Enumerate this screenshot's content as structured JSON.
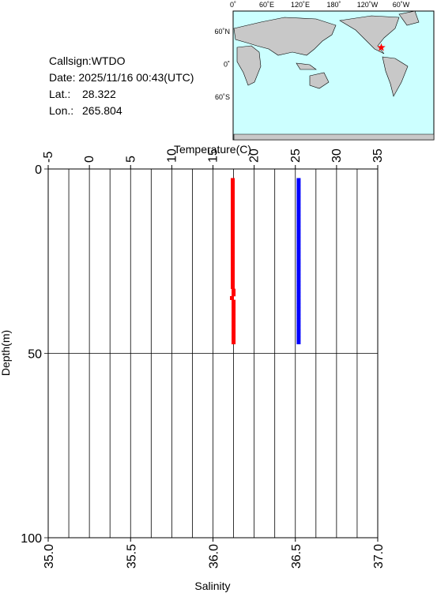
{
  "info": {
    "callsign": "Callsign:WTDO",
    "date": "Date:  2025/11/16 00:43(UTC)",
    "lat_label": "Lat.:",
    "lat": 28.322,
    "lon_label": "Lon.:",
    "lon": 265.804
  },
  "map": {
    "lon_labels": [
      "0˚",
      "60˚E",
      "120˚E",
      "180˚",
      "120˚W",
      "60˚W"
    ],
    "lat_labels": [
      "60˚N",
      "0˚",
      "60˚S"
    ]
  },
  "chart_data": {
    "type": "scatter",
    "xlabel": "Salinity",
    "x2label": "Temperature(C)",
    "ylabel": "Depth(m)",
    "xlim": [
      35.0,
      37.0
    ],
    "xticks": [
      {
        "value": 35.0,
        "label": "35.0"
      },
      {
        "value": 35.5,
        "label": "35.5"
      },
      {
        "value": 36.0,
        "label": "36.0"
      },
      {
        "value": 36.5,
        "label": "36.5"
      },
      {
        "value": 37.0,
        "label": "37.0"
      }
    ],
    "x2lim": [
      -5,
      35
    ],
    "x2ticks": [
      -5,
      0,
      5,
      10,
      15,
      20,
      25,
      30,
      35
    ],
    "x2grid": [
      -2.5,
      0,
      2.5,
      5,
      7.5,
      10,
      12.5,
      15,
      17.5,
      20,
      22.5,
      25,
      27.5,
      30,
      32.5
    ],
    "ylim": [
      0,
      100
    ],
    "invert_y": true,
    "yticks": [
      0,
      50,
      100
    ],
    "y": [
      3,
      4,
      5,
      6,
      7,
      8,
      9,
      10,
      11,
      12,
      13,
      14,
      15,
      16,
      17,
      18,
      19,
      20,
      21,
      22,
      23,
      24,
      25,
      26,
      27,
      28,
      29,
      30,
      31,
      32,
      33,
      34,
      35,
      36,
      37,
      38,
      39,
      40,
      41,
      42,
      43,
      44,
      45,
      46,
      47
    ],
    "series": [
      {
        "color": "#ff0000",
        "axis": "x2",
        "values": [
          17.4,
          17.4,
          17.4,
          17.4,
          17.4,
          17.4,
          17.4,
          17.4,
          17.4,
          17.4,
          17.4,
          17.4,
          17.4,
          17.4,
          17.4,
          17.4,
          17.4,
          17.4,
          17.4,
          17.4,
          17.4,
          17.4,
          17.4,
          17.4,
          17.4,
          17.4,
          17.4,
          17.4,
          17.4,
          17.4,
          17.5,
          17.5,
          17.3,
          17.5,
          17.5,
          17.5,
          17.5,
          17.5,
          17.5,
          17.5,
          17.5,
          17.5,
          17.5,
          17.5,
          17.5
        ]
      },
      {
        "color": "#0000ff",
        "axis": "x",
        "values": [
          36.52,
          36.52,
          36.52,
          36.52,
          36.52,
          36.52,
          36.52,
          36.52,
          36.52,
          36.52,
          36.52,
          36.52,
          36.52,
          36.52,
          36.52,
          36.52,
          36.52,
          36.52,
          36.52,
          36.52,
          36.52,
          36.52,
          36.52,
          36.52,
          36.52,
          36.52,
          36.52,
          36.52,
          36.52,
          36.52,
          36.52,
          36.52,
          36.52,
          36.52,
          36.52,
          36.52,
          36.52,
          36.52,
          36.52,
          36.52,
          36.52,
          36.52,
          36.52,
          36.52,
          36.52
        ]
      }
    ]
  }
}
